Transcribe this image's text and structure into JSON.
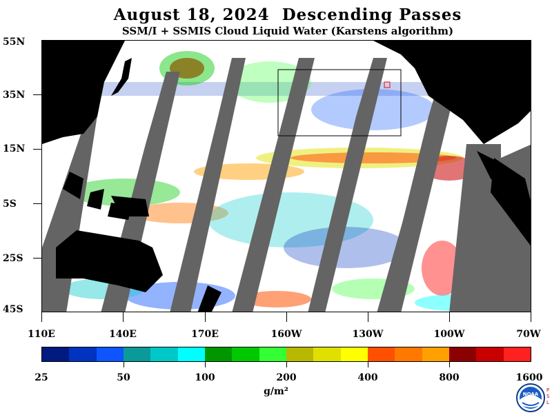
{
  "header": {
    "title": "August 18, 2024  Descending Passes",
    "subtitle": "SSM/I + SSMIS Cloud Liquid Water (Karstens algorithm)"
  },
  "map": {
    "lat_labels": [
      "55N",
      "35N",
      "15N",
      "5S",
      "25S",
      "45S"
    ],
    "lon_labels": [
      "110E",
      "140E",
      "170E",
      "160W",
      "130W",
      "100W",
      "70W"
    ],
    "colors": {
      "land": "#000000",
      "no_data": "#646464",
      "background": "#ffffff",
      "box": "#000000",
      "marker": "#ff0000"
    }
  },
  "colorbar": {
    "colors": [
      "#001a7f",
      "#0033c0",
      "#0f55ff",
      "#0a9a9a",
      "#00c8c8",
      "#00ffff",
      "#009600",
      "#00c800",
      "#33ff33",
      "#b8b800",
      "#e0e000",
      "#ffff00",
      "#ff5000",
      "#ff7800",
      "#ffa000",
      "#8b0000",
      "#c80000",
      "#ff2020"
    ],
    "labels": [
      "25",
      "50",
      "100",
      "200",
      "400",
      "800",
      "1600"
    ],
    "units": "g/m²"
  },
  "logo": {
    "text": "NOAA",
    "side_text": "PSL"
  }
}
